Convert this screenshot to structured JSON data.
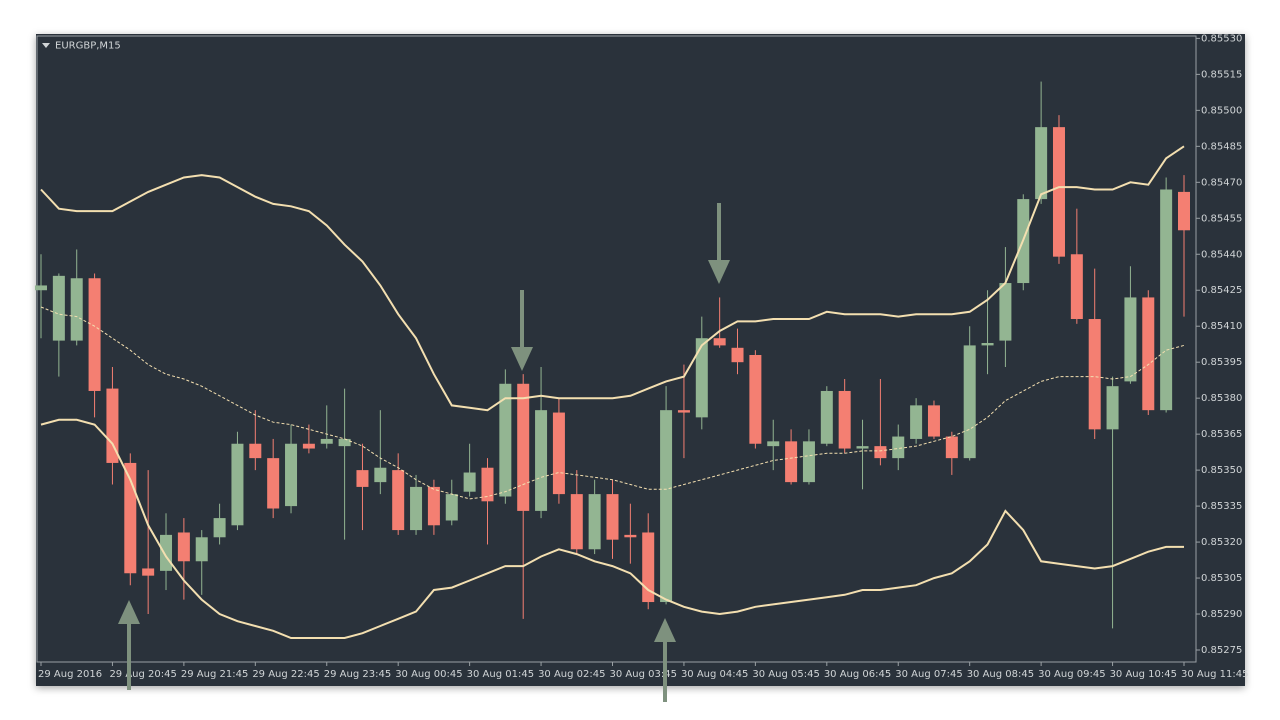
{
  "chart_data": {
    "type": "candlestick",
    "title": "EURGBP,M15",
    "categories": [
      "29 Aug 2016",
      null,
      null,
      null,
      "29 Aug 20:45",
      null,
      null,
      null,
      "29 Aug 21:45",
      null,
      null,
      null,
      "29 Aug 22:45",
      null,
      null,
      null,
      "29 Aug 23:45",
      null,
      null,
      null,
      "30 Aug 00:45",
      null,
      null,
      null,
      "30 Aug 01:45",
      null,
      null,
      null,
      "30 Aug 02:45",
      null,
      null,
      null,
      "30 Aug 03:45",
      null,
      null,
      null,
      "30 Aug 04:45",
      null,
      null,
      null,
      "30 Aug 05:45",
      null,
      null,
      null,
      "30 Aug 06:45",
      null,
      null,
      null,
      "30 Aug 07:45",
      null,
      null,
      null,
      "30 Aug 08:45",
      null,
      null,
      null,
      "30 Aug 09:45",
      null,
      null,
      null,
      "30 Aug 10:45",
      null,
      null,
      null,
      "30 Aug 11:45"
    ],
    "open": [
      0.85425,
      0.85404,
      0.85404,
      0.8543,
      0.85384,
      0.85353,
      0.85309,
      0.85308,
      0.85324,
      0.85312,
      0.85322,
      0.85327,
      0.85361,
      0.85355,
      0.85335,
      0.85361,
      0.85361,
      0.8536,
      0.8535,
      0.85345,
      0.8535,
      0.85325,
      0.85343,
      0.85329,
      0.85341,
      0.85351,
      0.85339,
      0.85386,
      0.85333,
      0.85374,
      0.8534,
      0.85317,
      0.8534,
      0.85323,
      0.85324,
      0.85295,
      0.85375,
      0.85372,
      0.85405,
      0.85401,
      0.85398,
      0.8536,
      0.85362,
      0.85345,
      0.85361,
      0.85383,
      0.85359,
      0.8536,
      0.85355,
      0.85363,
      0.85377,
      0.85364,
      0.85355,
      0.85402,
      0.85404,
      0.85428,
      0.85463,
      0.85493,
      0.8544,
      0.85413,
      0.85367,
      0.85387,
      0.85422,
      0.85375,
      0.85466
    ],
    "high": [
      0.8544,
      0.85432,
      0.85442,
      0.85432,
      0.85393,
      0.85357,
      0.8535,
      0.85332,
      0.8533,
      0.85325,
      0.85336,
      0.85366,
      0.85375,
      0.85363,
      0.85369,
      0.85369,
      0.85377,
      0.85384,
      0.85361,
      0.85375,
      0.85357,
      0.85348,
      0.85346,
      0.85346,
      0.85361,
      0.85355,
      0.85392,
      0.8539,
      0.85393,
      0.8538,
      0.8535,
      0.85346,
      0.85346,
      0.85336,
      0.85332,
      0.85385,
      0.85394,
      0.85414,
      0.85422,
      0.85409,
      0.854,
      0.85371,
      0.85367,
      0.85367,
      0.85385,
      0.85388,
      0.85371,
      0.85388,
      0.85369,
      0.8538,
      0.85379,
      0.85366,
      0.8541,
      0.85425,
      0.85443,
      0.85465,
      0.85512,
      0.85498,
      0.85459,
      0.85434,
      0.85389,
      0.85435,
      0.85425,
      0.85472,
      0.85473
    ],
    "low": [
      0.85405,
      0.85389,
      0.85402,
      0.85372,
      0.85344,
      0.85302,
      0.8529,
      0.853,
      0.85296,
      0.85298,
      0.85319,
      0.85325,
      0.8535,
      0.8533,
      0.85332,
      0.85357,
      0.85359,
      0.85321,
      0.85325,
      0.8534,
      0.85323,
      0.85323,
      0.85323,
      0.85327,
      0.85339,
      0.85319,
      0.85336,
      0.85288,
      0.8533,
      0.85336,
      0.85315,
      0.85315,
      0.85313,
      0.85311,
      0.85292,
      0.85294,
      0.85355,
      0.85367,
      0.85401,
      0.8539,
      0.85359,
      0.8535,
      0.85344,
      0.85344,
      0.8536,
      0.85357,
      0.85342,
      0.85352,
      0.8535,
      0.85361,
      0.85363,
      0.85348,
      0.85354,
      0.8539,
      0.85393,
      0.85425,
      0.85461,
      0.85436,
      0.85411,
      0.85363,
      0.85284,
      0.85386,
      0.85373,
      0.85374,
      0.85414
    ],
    "close": [
      0.85427,
      0.85431,
      0.8543,
      0.85383,
      0.85353,
      0.85307,
      0.85306,
      0.85323,
      0.85312,
      0.85322,
      0.8533,
      0.85361,
      0.85355,
      0.85334,
      0.85361,
      0.85359,
      0.85363,
      0.85363,
      0.85343,
      0.85351,
      0.85325,
      0.85343,
      0.85327,
      0.8534,
      0.85349,
      0.85337,
      0.85386,
      0.85333,
      0.85375,
      0.8534,
      0.85317,
      0.8534,
      0.85321,
      0.85322,
      0.85295,
      0.85375,
      0.85374,
      0.85405,
      0.85402,
      0.85395,
      0.85361,
      0.85362,
      0.85345,
      0.85362,
      0.85383,
      0.85359,
      0.8536,
      0.85355,
      0.85364,
      0.85377,
      0.85364,
      0.85355,
      0.85402,
      0.85403,
      0.85428,
      0.85463,
      0.85493,
      0.85439,
      0.85413,
      0.85367,
      0.85385,
      0.85422,
      0.85375,
      0.85467,
      0.8545
    ],
    "up_color": "#93b592",
    "down_color": "#f47f72",
    "lines": [
      {
        "color": "#f3dfb0",
        "dash": false,
        "values": [
          0.85467,
          0.85459,
          0.85458,
          0.85458,
          0.85458,
          0.85462,
          0.85466,
          0.85469,
          0.85472,
          0.85473,
          0.85472,
          0.85468,
          0.85464,
          0.85461,
          0.8546,
          0.85458,
          0.85452,
          0.85444,
          0.85437,
          0.85427,
          0.85415,
          0.85405,
          0.8539,
          0.85377,
          0.85376,
          0.85375,
          0.8538,
          0.8538,
          0.85381,
          0.8538,
          0.8538,
          0.8538,
          0.8538,
          0.85381,
          0.85384,
          0.85387,
          0.85389,
          0.85402,
          0.85408,
          0.85412,
          0.85412,
          0.85413,
          0.85413,
          0.85413,
          0.85416,
          0.85415,
          0.85415,
          0.85415,
          0.85414,
          0.85415,
          0.85415,
          0.85415,
          0.85416,
          0.85421,
          0.85428,
          0.85446,
          0.85465,
          0.85468,
          0.85468,
          0.85467,
          0.85467,
          0.8547,
          0.85469,
          0.8548,
          0.85485
        ]
      },
      {
        "color": "#f3dfb0",
        "dash": true,
        "values": [
          0.85418,
          0.85415,
          0.85414,
          0.8541,
          0.85405,
          0.854,
          0.85394,
          0.8539,
          0.85388,
          0.85385,
          0.85381,
          0.85377,
          0.85373,
          0.8537,
          0.85369,
          0.85367,
          0.85365,
          0.85363,
          0.8536,
          0.85355,
          0.85351,
          0.85346,
          0.85342,
          0.8534,
          0.85338,
          0.85339,
          0.85341,
          0.85344,
          0.85347,
          0.85349,
          0.85348,
          0.85347,
          0.85346,
          0.85344,
          0.85342,
          0.85342,
          0.85344,
          0.85346,
          0.85348,
          0.8535,
          0.85352,
          0.85354,
          0.85355,
          0.85356,
          0.85357,
          0.85357,
          0.85358,
          0.85358,
          0.85359,
          0.8536,
          0.85362,
          0.85364,
          0.85367,
          0.85372,
          0.85379,
          0.85383,
          0.85387,
          0.85389,
          0.85389,
          0.85389,
          0.85388,
          0.85389,
          0.85394,
          0.854,
          0.85402
        ]
      },
      {
        "color": "#f3dfb0",
        "dash": false,
        "values": [
          0.85369,
          0.85371,
          0.85371,
          0.85369,
          0.85361,
          0.85346,
          0.85327,
          0.85314,
          0.85304,
          0.85296,
          0.8529,
          0.85287,
          0.85285,
          0.85283,
          0.8528,
          0.8528,
          0.8528,
          0.8528,
          0.85282,
          0.85285,
          0.85288,
          0.85291,
          0.853,
          0.85301,
          0.85304,
          0.85307,
          0.8531,
          0.8531,
          0.85314,
          0.85317,
          0.85315,
          0.85312,
          0.8531,
          0.85307,
          0.853,
          0.85296,
          0.85293,
          0.85291,
          0.8529,
          0.85291,
          0.85293,
          0.85294,
          0.85295,
          0.85296,
          0.85297,
          0.85298,
          0.853,
          0.853,
          0.85301,
          0.85302,
          0.85305,
          0.85307,
          0.85312,
          0.85319,
          0.85333,
          0.85325,
          0.85312,
          0.85311,
          0.8531,
          0.85309,
          0.8531,
          0.85313,
          0.85316,
          0.85318,
          0.85318
        ]
      }
    ],
    "ylim": [
      0.8527,
      0.85531
    ],
    "yticks": [
      {
        "value": 0.8553,
        "label": "0.85530"
      },
      {
        "value": 0.85515,
        "label": "0.85515"
      },
      {
        "value": 0.855,
        "label": "0.85500"
      },
      {
        "value": 0.85485,
        "label": "0.85485"
      },
      {
        "value": 0.8547,
        "label": "0.85470"
      },
      {
        "value": 0.85455,
        "label": "0.85455"
      },
      {
        "value": 0.8544,
        "label": "0.85440"
      },
      {
        "value": 0.85425,
        "label": "0.85425"
      },
      {
        "value": 0.8541,
        "label": "0.85410"
      },
      {
        "value": 0.85395,
        "label": "0.85395"
      },
      {
        "value": 0.8538,
        "label": "0.85380"
      },
      {
        "value": 0.85365,
        "label": "0.85365"
      },
      {
        "value": 0.8535,
        "label": "0.85350"
      },
      {
        "value": 0.85335,
        "label": "0.85335"
      },
      {
        "value": 0.8532,
        "label": "0.85320"
      },
      {
        "value": 0.85305,
        "label": "0.85305"
      },
      {
        "value": 0.8529,
        "label": "0.85290"
      },
      {
        "value": 0.85275,
        "label": "0.85275"
      }
    ]
  }
}
